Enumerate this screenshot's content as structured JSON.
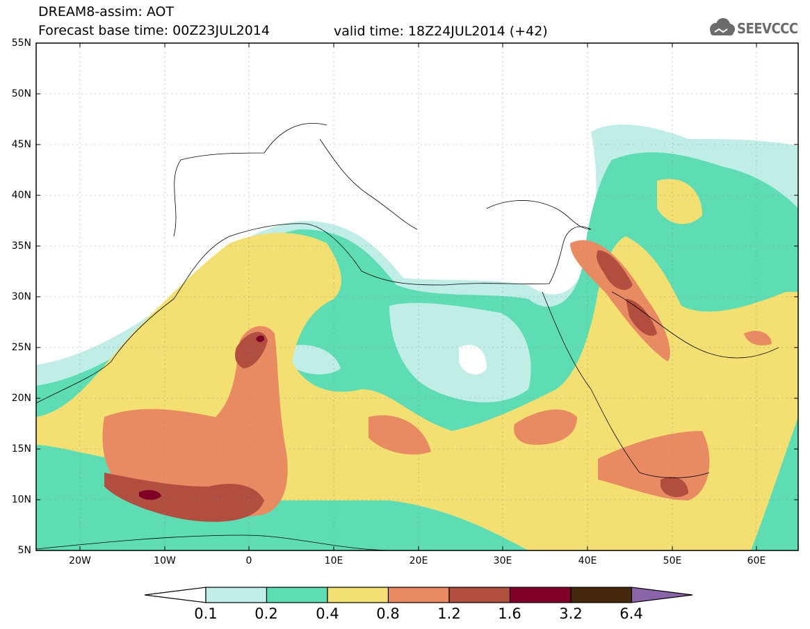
{
  "header": {
    "title": "DREAM8-assim: AOT",
    "forecast": "Forecast base time: 00Z23JUL2014",
    "valid": "valid time: 18Z24JUL2014 (+42)",
    "logo_text": "SEEVCCC"
  },
  "map": {
    "lat_labels": [
      "55N",
      "50N",
      "45N",
      "40N",
      "35N",
      "30N",
      "25N",
      "20N",
      "15N",
      "10N",
      "5N"
    ],
    "lat_values": [
      55,
      50,
      45,
      40,
      35,
      30,
      25,
      20,
      15,
      10,
      5
    ],
    "lon_labels": [
      "20W",
      "10W",
      "0",
      "10E",
      "20E",
      "30E",
      "40E",
      "50E",
      "60E"
    ],
    "lon_values": [
      -20,
      -10,
      0,
      10,
      20,
      30,
      40,
      50,
      60
    ],
    "extent": {
      "lon": [
        -25,
        65
      ],
      "lat": [
        5,
        55
      ]
    }
  },
  "colorbar": {
    "levels": [
      "0.1",
      "0.2",
      "0.4",
      "0.8",
      "1.2",
      "1.6",
      "3.2",
      "6.4"
    ],
    "colors": [
      "#ffffff",
      "#c0eee6",
      "#5edcb4",
      "#f4e072",
      "#e88b62",
      "#b14e40",
      "#7e0026",
      "#46280e",
      "#8a63a8"
    ]
  }
}
